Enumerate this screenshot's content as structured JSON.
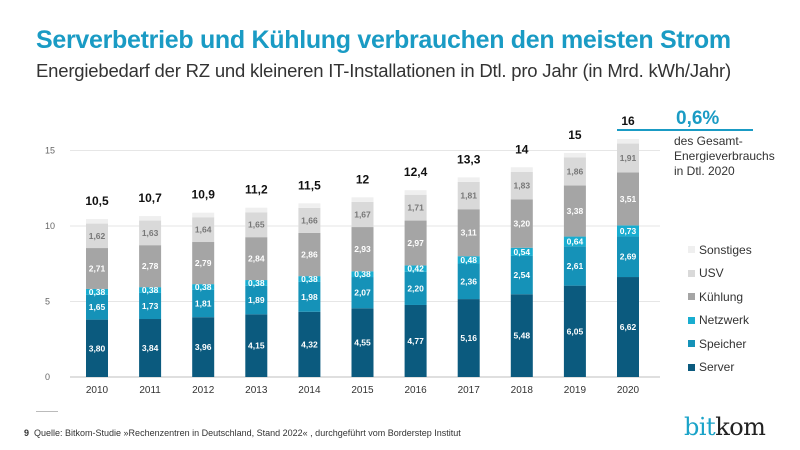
{
  "header": {
    "title": "Serverbetrieb und Kühlung verbrauchen den meisten Strom",
    "subtitle": "Energiebedarf der RZ und kleineren IT-Installationen in Dtl. pro Jahr (in Mrd. kWh/Jahr)"
  },
  "note": {
    "value": "0,6%",
    "text": "des Gesamt-Energieverbrauchs in Dtl. 2020"
  },
  "footer": {
    "page": "9",
    "source": "Quelle: Bitkom-Studie »Rechenzentren in Deutschland, Stand 2022« , durchgeführt vom Borderstep Institut",
    "logo": "bitkom"
  },
  "chart_data": {
    "type": "bar",
    "stacked": true,
    "title": "",
    "xlabel": "",
    "ylabel": "",
    "ylim": [
      0,
      16
    ],
    "yticks": [
      "0",
      "5",
      "10",
      "15"
    ],
    "grid": true,
    "legend_position": "right",
    "categories": [
      "2010",
      "2011",
      "2012",
      "2013",
      "2014",
      "2015",
      "2016",
      "2017",
      "2018",
      "2019",
      "2020"
    ],
    "totals": [
      "10,5",
      "10,7",
      "10,9",
      "11,2",
      "11,5",
      "12",
      "12,4",
      "13,3",
      "14",
      "15",
      "16"
    ],
    "series": [
      {
        "name": "Server",
        "color": "#0b5a7e",
        "label_color": "#ffffff",
        "values": [
          3.8,
          3.84,
          3.96,
          4.15,
          4.32,
          4.55,
          4.77,
          5.16,
          5.48,
          6.05,
          6.62
        ]
      },
      {
        "name": "Speicher",
        "color": "#1592b8",
        "label_color": "#ffffff",
        "values": [
          1.65,
          1.73,
          1.81,
          1.89,
          1.98,
          2.07,
          2.2,
          2.36,
          2.54,
          2.61,
          2.69
        ]
      },
      {
        "name": "Netzwerk",
        "color": "#19add0",
        "label_color": "#ffffff",
        "values": [
          0.38,
          0.38,
          0.38,
          0.38,
          0.38,
          0.38,
          0.42,
          0.48,
          0.54,
          0.64,
          0.73
        ]
      },
      {
        "name": "Kühlung",
        "color": "#a5a5a5",
        "label_color": "#ffffff",
        "values": [
          2.71,
          2.78,
          2.79,
          2.84,
          2.86,
          2.93,
          2.97,
          3.11,
          3.2,
          3.38,
          3.51
        ]
      },
      {
        "name": "USV",
        "color": "#d9d9d9",
        "label_color": "#777777",
        "values": [
          1.62,
          1.63,
          1.64,
          1.65,
          1.66,
          1.67,
          1.71,
          1.81,
          1.83,
          1.86,
          1.91
        ]
      },
      {
        "name": "Sonstiges",
        "color": "#efefef",
        "label_color": null,
        "values": [
          0.3,
          0.3,
          0.3,
          0.3,
          0.3,
          0.3,
          0.3,
          0.3,
          0.3,
          0.3,
          0.3
        ]
      }
    ]
  }
}
